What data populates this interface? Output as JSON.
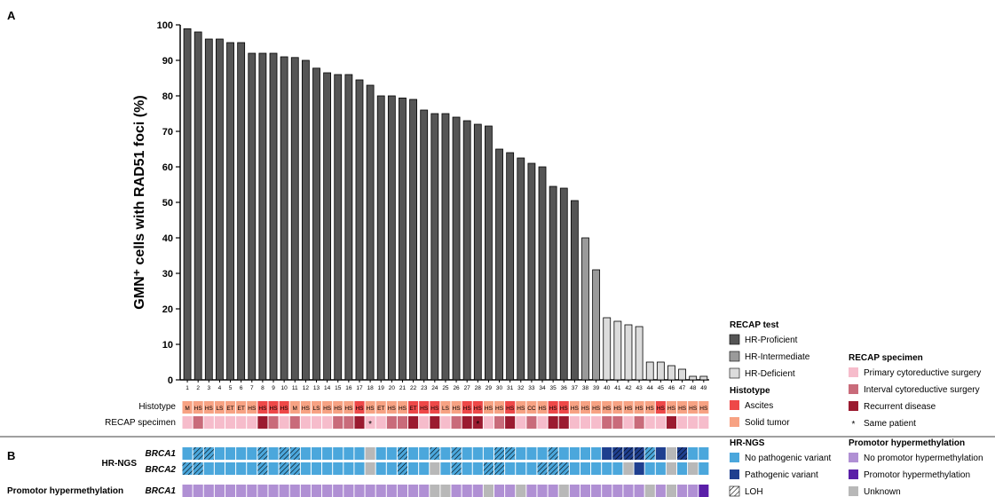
{
  "chart_data": {
    "type": "bar",
    "panels": {
      "a": "A",
      "b": "B"
    },
    "ylabel": "GMN⁺ cells with RAD51 foci  (%)",
    "ylim": [
      0,
      100
    ],
    "yticks": [
      0,
      10,
      20,
      30,
      40,
      50,
      60,
      70,
      80,
      90,
      100
    ],
    "categories": [
      "1",
      "2",
      "3",
      "4",
      "5",
      "6",
      "7",
      "8",
      "9",
      "10",
      "11",
      "12",
      "13",
      "14",
      "15",
      "16",
      "17",
      "18",
      "19",
      "20",
      "21",
      "22",
      "23",
      "24",
      "25",
      "26",
      "27",
      "28",
      "29",
      "30",
      "31",
      "32",
      "33",
      "34",
      "35",
      "36",
      "37",
      "38",
      "39",
      "40",
      "41",
      "42",
      "43",
      "44",
      "45",
      "46",
      "47",
      "48",
      "49"
    ],
    "values": [
      98.9,
      98,
      96,
      96,
      95,
      95,
      92,
      92,
      92,
      91,
      90.8,
      90,
      87.8,
      86.5,
      86,
      86,
      84.5,
      83,
      80,
      80,
      79.4,
      79,
      76,
      75,
      75,
      74,
      73,
      72,
      71.5,
      65,
      64,
      62.5,
      61,
      60,
      54.5,
      54,
      50.5,
      40,
      31,
      17.5,
      16.5,
      15.5,
      15,
      5,
      5,
      4,
      3,
      1,
      1
    ],
    "bar_class": [
      "P",
      "P",
      "P",
      "P",
      "P",
      "P",
      "P",
      "P",
      "P",
      "P",
      "P",
      "P",
      "P",
      "P",
      "P",
      "P",
      "P",
      "P",
      "P",
      "P",
      "P",
      "P",
      "P",
      "P",
      "P",
      "P",
      "P",
      "P",
      "P",
      "P",
      "P",
      "P",
      "P",
      "P",
      "P",
      "P",
      "P",
      "I",
      "I",
      "D",
      "D",
      "D",
      "D",
      "D",
      "D",
      "D",
      "D",
      "D",
      "D"
    ],
    "row_labels": {
      "histotype": "Histotype",
      "specimen": "RECAP specimen",
      "hrngs": "HR-NGS",
      "brca1": "BRCA1",
      "brca2": "BRCA2",
      "methyl": "Promotor hypermethylation",
      "methyl_gene": "BRCA1"
    },
    "histotype": [
      "M",
      "HS",
      "HS",
      "LS",
      "ET",
      "ET",
      "HS",
      "HS",
      "HS",
      "HS",
      "M",
      "HS",
      "LS",
      "HS",
      "HS",
      "HS",
      "HS",
      "HS",
      "ET",
      "HS",
      "HS",
      "ET",
      "HS",
      "HS",
      "LS",
      "HS",
      "HS",
      "HS",
      "HS",
      "HS",
      "HS",
      "HS",
      "CC",
      "HS",
      "HS",
      "HS",
      "HS",
      "HS",
      "HS",
      "HS",
      "HS",
      "HS",
      "HS",
      "HS",
      "HS",
      "HS",
      "HS",
      "HS",
      "HS"
    ],
    "histotype_source": [
      "S",
      "S",
      "S",
      "S",
      "S",
      "S",
      "S",
      "A",
      "A",
      "A",
      "S",
      "S",
      "S",
      "S",
      "S",
      "S",
      "A",
      "S",
      "S",
      "S",
      "S",
      "A",
      "A",
      "A",
      "S",
      "S",
      "A",
      "A",
      "S",
      "S",
      "A",
      "S",
      "S",
      "S",
      "A",
      "A",
      "S",
      "S",
      "S",
      "S",
      "S",
      "S",
      "S",
      "S",
      "A",
      "S",
      "S",
      "S",
      "S"
    ],
    "specimen": [
      "P",
      "I",
      "P",
      "P",
      "P",
      "P",
      "P",
      "R",
      "I",
      "P",
      "I",
      "P",
      "P",
      "P",
      "I",
      "I",
      "R",
      "P",
      "P",
      "I",
      "I",
      "R",
      "P",
      "R",
      "P",
      "I",
      "R",
      "R",
      "P",
      "I",
      "R",
      "P",
      "I",
      "P",
      "R",
      "R",
      "P",
      "P",
      "P",
      "I",
      "I",
      "P",
      "I",
      "P",
      "P",
      "R",
      "P",
      "P",
      "P"
    ],
    "same_patient": [
      18,
      28
    ],
    "brca1": [
      "N",
      "L",
      "L",
      "N",
      "N",
      "N",
      "N",
      "L",
      "N",
      "L",
      "L",
      "N",
      "N",
      "N",
      "N",
      "N",
      "N",
      "U",
      "N",
      "N",
      "L",
      "N",
      "N",
      "L",
      "N",
      "L",
      "N",
      "N",
      "N",
      "L",
      "L",
      "N",
      "N",
      "N",
      "L",
      "N",
      "N",
      "N",
      "N",
      "N",
      "N",
      "N",
      "N",
      "N",
      "N",
      "N",
      "N",
      "N",
      "N"
    ],
    "brca1_col_a": [
      "N",
      "N",
      "N",
      "N",
      "N",
      "N",
      "N",
      "N",
      "L",
      "N",
      "N",
      "N",
      "N",
      "N",
      "N",
      "N",
      "N",
      "N",
      "N",
      "N",
      "N",
      "N",
      "N",
      "N",
      "N",
      "N",
      "N",
      "N",
      "N",
      "N",
      "N",
      "N",
      "N",
      "N",
      "N",
      "N",
      "N",
      "N",
      "N",
      "N",
      "N",
      "N",
      "N",
      "N",
      "N",
      "N",
      "N",
      "N",
      "N"
    ],
    "brca2": [
      "L",
      "L",
      "N",
      "N",
      "N",
      "N",
      "N",
      "L",
      "N",
      "L",
      "L",
      "N",
      "N",
      "N",
      "N",
      "N",
      "N",
      "U",
      "N",
      "N",
      "L",
      "N",
      "N",
      "U",
      "N",
      "L",
      "N",
      "N",
      "L",
      "L",
      "N",
      "N",
      "N",
      "L",
      "L",
      "L",
      "N",
      "N",
      "N",
      "N",
      "N",
      "N",
      "N",
      "N",
      "N",
      "N",
      "N",
      "N",
      "N"
    ],
    "methyl": [
      "N",
      "N",
      "N",
      "N",
      "N",
      "N",
      "N",
      "N",
      "N",
      "N",
      "N",
      "N",
      "N",
      "N",
      "N",
      "N",
      "N",
      "N",
      "N",
      "N",
      "N",
      "N",
      "N",
      "N",
      "N",
      "N",
      "N",
      "N",
      "N",
      "N",
      "N",
      "N",
      "N",
      "N",
      "N",
      "N",
      "N",
      "N",
      "N",
      "N",
      "N",
      "N",
      "N",
      "N",
      "N",
      "N",
      "N",
      "N",
      "H"
    ],
    "legend": {
      "recap_test": {
        "title": "RECAP test",
        "items": [
          "HR-Proficient",
          "HR-Intermediate",
          "HR-Deficient"
        ]
      },
      "histotype": {
        "title": "Histotype",
        "items": [
          "Ascites",
          "Solid tumor"
        ]
      },
      "specimen": {
        "title": "RECAP specimen",
        "items": [
          "Primary cytoreductive surgery",
          "Interval cytoreductive surgery",
          "Recurrent disease",
          "Same patient"
        ],
        "same_patient_symbol": "*"
      },
      "hrngs": {
        "title": "HR-NGS",
        "items": [
          "No pathogenic variant",
          "Pathogenic variant",
          "LOH"
        ]
      },
      "methyl": {
        "title": "Promotor hypermethylation",
        "items": [
          "No promotor hypermethylation",
          "Promotor hypermethylation",
          "Unknown"
        ]
      }
    },
    "colors": {
      "proficient": "#555555",
      "intermediate": "#9a9a9a",
      "deficient": "#dcdcdc",
      "ascites": "#ee4848",
      "solid": "#f7a283",
      "primary": "#f6bccb",
      "interval": "#c96b7a",
      "recurrent": "#9b1b30",
      "ngs_no": "#4ba7dc",
      "ngs_path": "#1f3f8f",
      "methyl_no": "#b090d4",
      "methyl_yes": "#5a1fa8",
      "unknown": "#b8b8b8"
    }
  }
}
